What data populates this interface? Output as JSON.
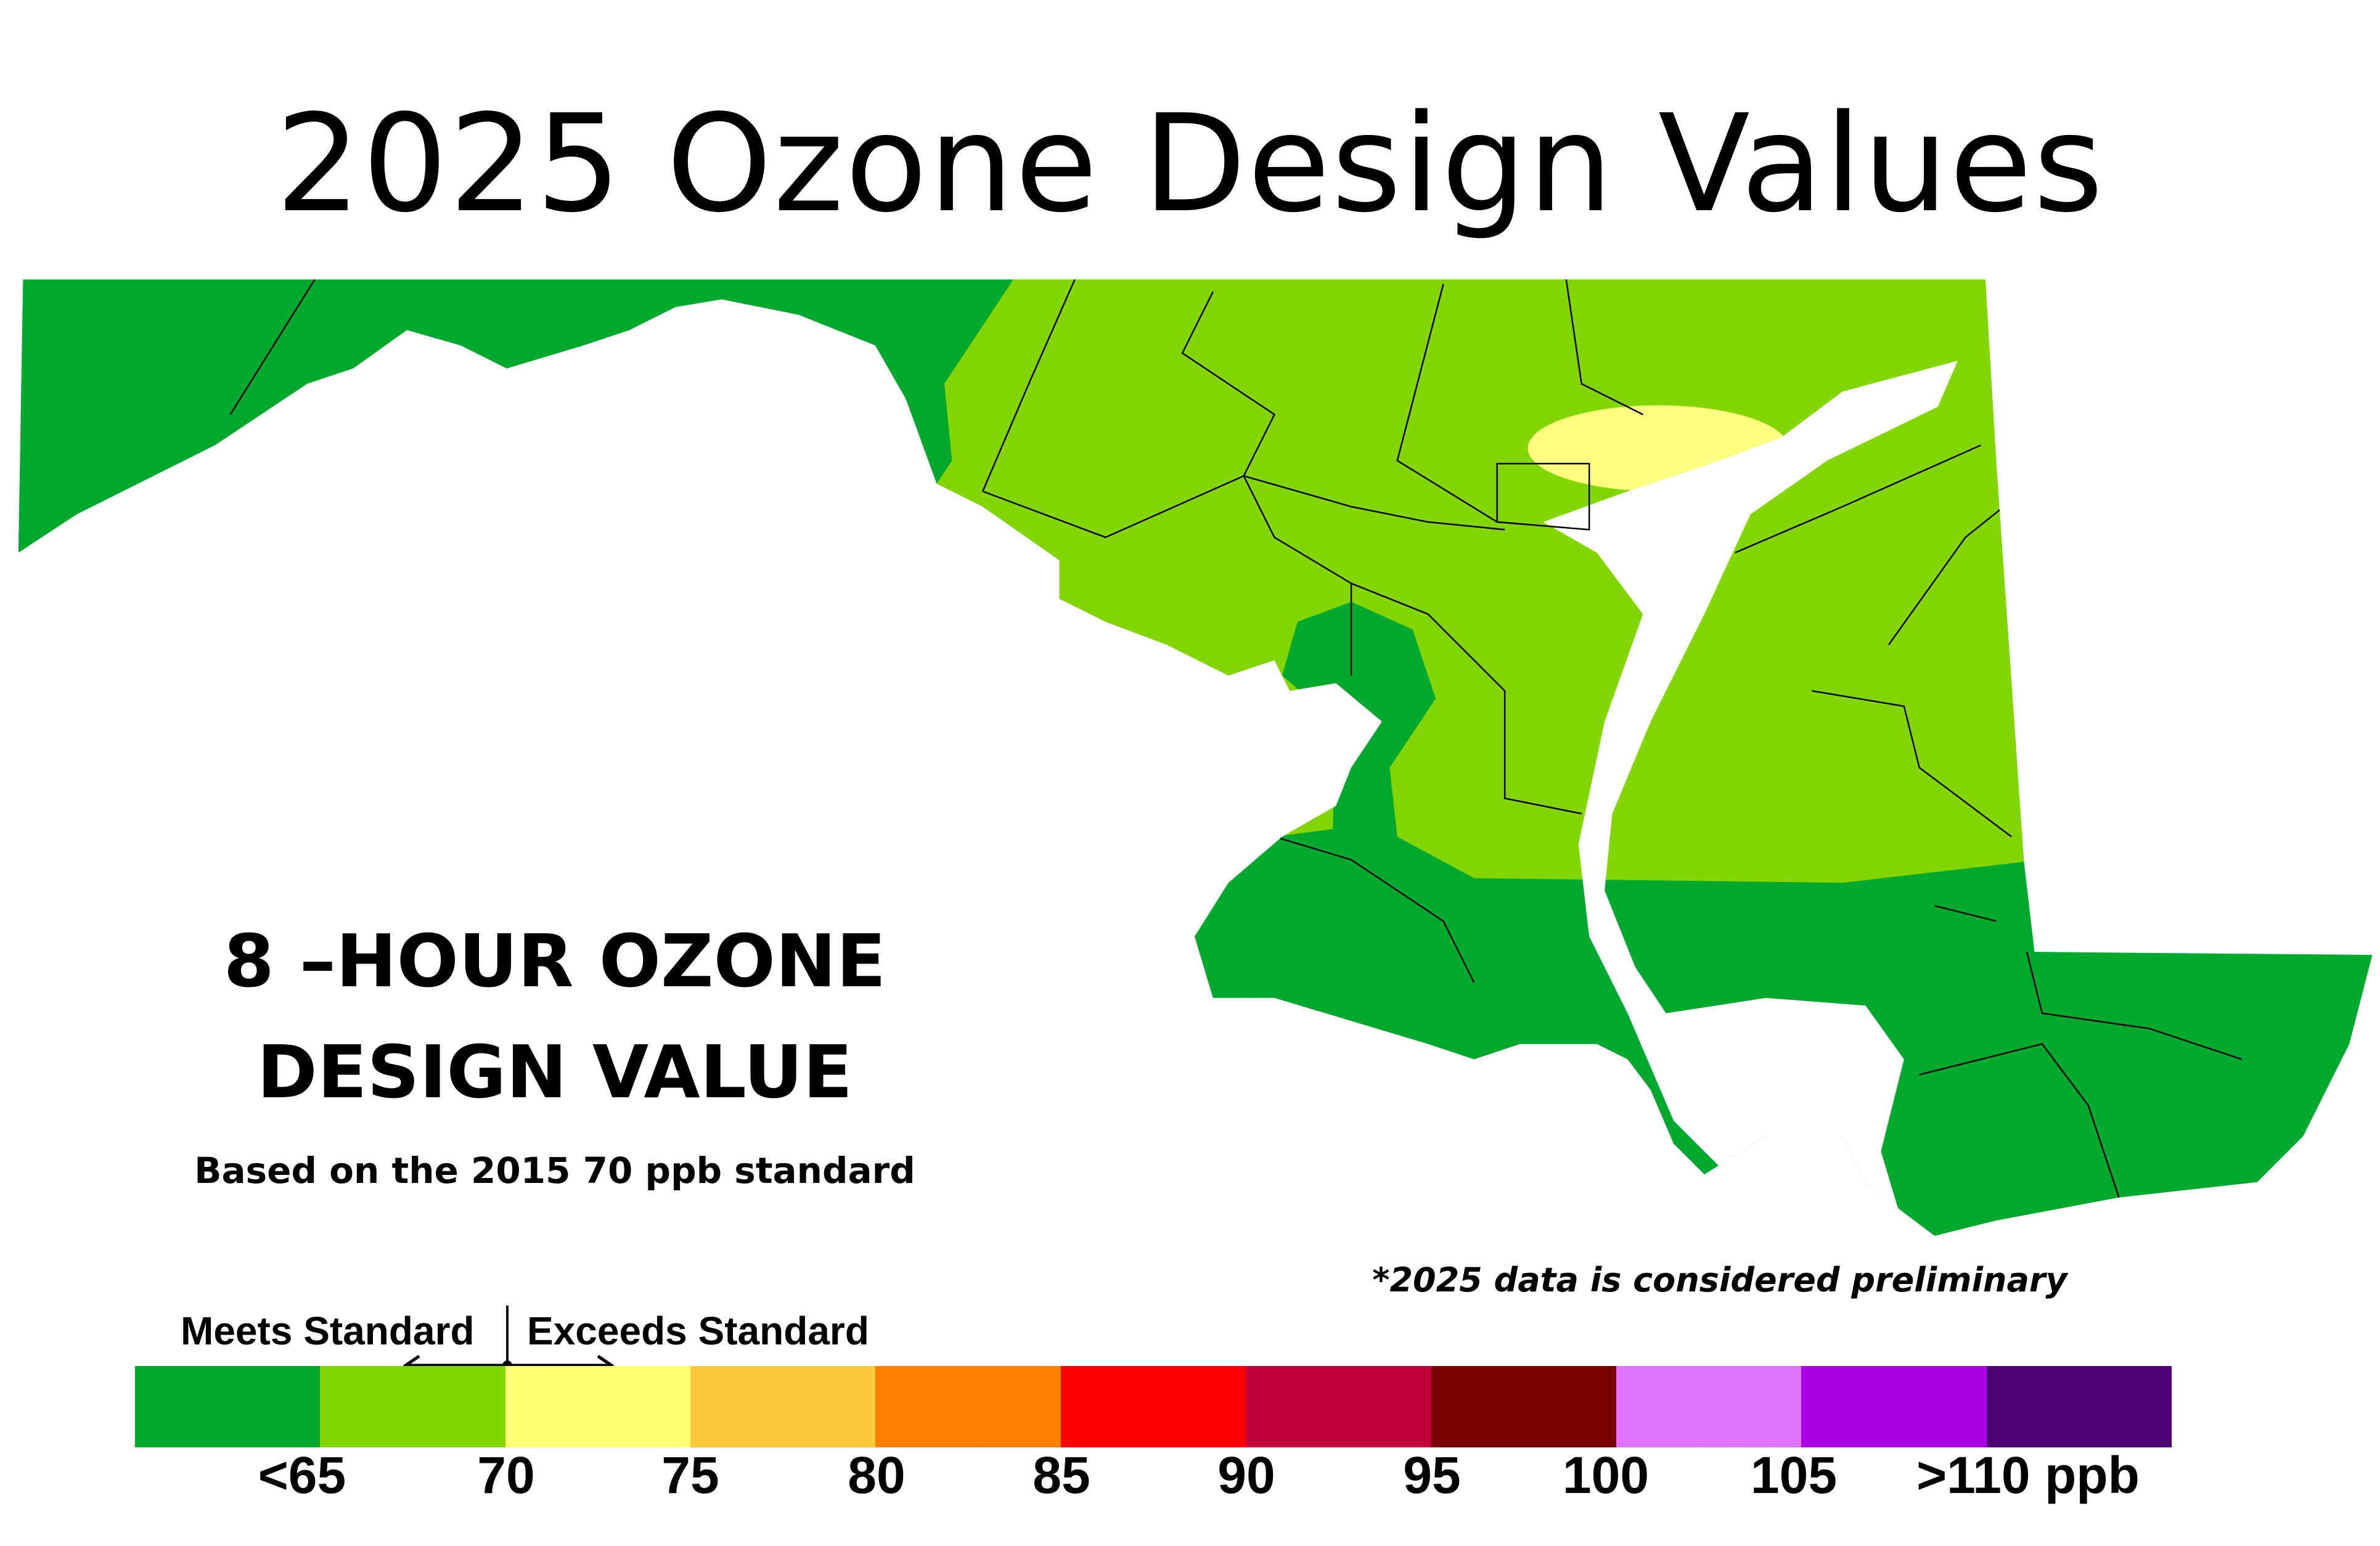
{
  "title": "2025 Ozone Design Values",
  "heading_line1": "8 –HOUR OZONE",
  "heading_line2": "DESIGN VALUE",
  "subheading": "Based on the 2015 70 ppb standard",
  "note": "*2025 data is considered preliminary",
  "legend": {
    "meets_label": "Meets Standard",
    "exceeds_label": "Exceeds Standard",
    "colors": [
      "#00a82d",
      "#84d600",
      "#ffff73",
      "#ffc83c",
      "#ff8000",
      "#ff0000",
      "#c3003c",
      "#780000",
      "#e073ff",
      "#aa00e6",
      "#4c0073"
    ],
    "labels": [
      "<65",
      "70",
      "75",
      "80",
      "85",
      "90",
      "95",
      "100",
      "105",
      ">110 ppb"
    ]
  },
  "map_colors": {
    "lt65": "#00a82d",
    "65_70": "#84d600",
    "70_75": "#ffff80",
    "water": "#ffffff"
  }
}
